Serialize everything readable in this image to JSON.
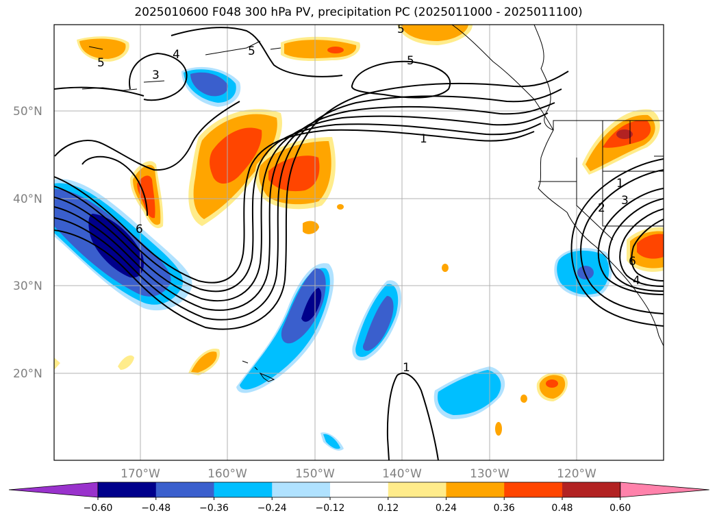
{
  "title": "2025010600 F048 300 hPa PV, precipitation PC (2025011000 - 2025011100)",
  "lon_ticks": [
    "170°W",
    "160°W",
    "150°W",
    "140°W",
    "130°W",
    "120°W"
  ],
  "lat_ticks": [
    "50°N",
    "40°N",
    "30°N",
    "20°N"
  ],
  "colorbar": {
    "levels": [
      "−0.60",
      "−0.48",
      "−0.36",
      "−0.24",
      "−0.12",
      "0.12",
      "0.24",
      "0.36",
      "0.48",
      "0.60"
    ],
    "colors": [
      "#9932cc",
      "#00008b",
      "#3a5fcd",
      "#00bfff",
      "#b0e2ff",
      "#ffffff",
      "#ffec8b",
      "#ffa500",
      "#ff4500",
      "#b22222",
      "#ff82ab"
    ]
  },
  "contour_labels": [
    "5",
    "4",
    "3",
    "5",
    "5",
    "1",
    "6",
    "5",
    "1",
    "2",
    "3",
    "4",
    "1",
    "6"
  ]
}
